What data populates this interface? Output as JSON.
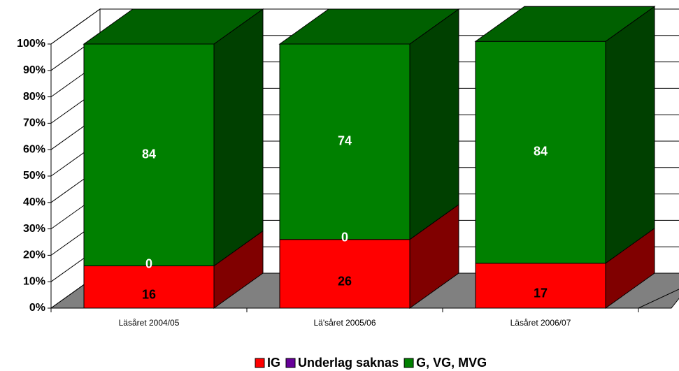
{
  "chart_data": {
    "type": "bar3d_stacked",
    "categories": [
      "Läsåret 2004/05",
      "Lä'såret 2005/06",
      "Läsåret 2006/07"
    ],
    "series": [
      {
        "name": "IG",
        "color": "#ff0000",
        "values": [
          16,
          26,
          17
        ]
      },
      {
        "name": "Underlag saknas",
        "color": "#660099",
        "values": [
          0,
          0,
          null
        ]
      },
      {
        "name": "G, VG, MVG",
        "color": "#008000",
        "values": [
          84,
          74,
          84
        ]
      }
    ],
    "ylim": [
      0,
      100
    ],
    "yticks": [
      {
        "value": 0,
        "label": "0%"
      },
      {
        "value": 10,
        "label": "10%"
      },
      {
        "value": 20,
        "label": "20%"
      },
      {
        "value": 30,
        "label": "30%"
      },
      {
        "value": 40,
        "label": "40%"
      },
      {
        "value": 50,
        "label": "50%"
      },
      {
        "value": 60,
        "label": "60%"
      },
      {
        "value": 70,
        "label": "70%"
      },
      {
        "value": 80,
        "label": "80%"
      },
      {
        "value": 90,
        "label": "90%"
      },
      {
        "value": 100,
        "label": "100%"
      }
    ],
    "grid": true,
    "legend": "bottom"
  }
}
